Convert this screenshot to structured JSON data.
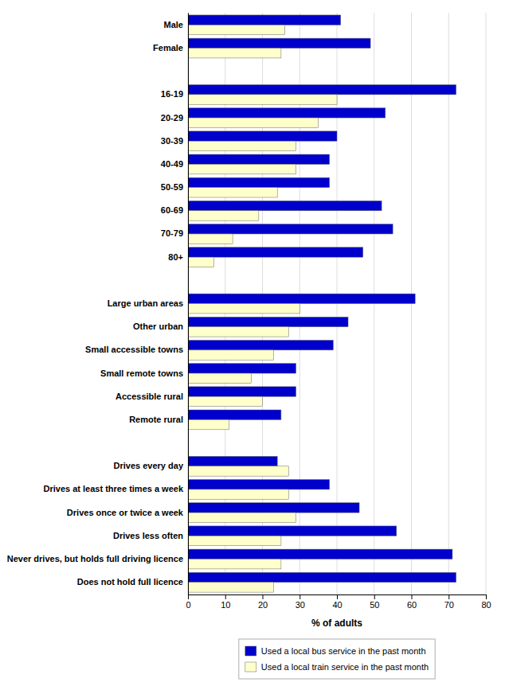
{
  "chart_data": {
    "type": "bar",
    "orientation": "horizontal",
    "x_label": "% of adults",
    "categories": [
      "Male",
      "Female",
      null,
      "16-19",
      "20-29",
      "30-39",
      "40-49",
      "50-59",
      "60-69",
      "70-79",
      "80+",
      null,
      "Large urban areas",
      "Other urban",
      "Small accessible towns",
      "Small remote towns",
      "Accessible rural",
      "Remote rural",
      null,
      "Drives every day",
      "Drives at least three times a week",
      "Drives once or twice a week",
      "Drives less often",
      "Never drives, but holds full driving licence",
      "Does not hold full licence"
    ],
    "series": [
      {
        "name": "Used a local bus service in the past month",
        "color": "#0000CC",
        "values": [
          41,
          49,
          null,
          72,
          53,
          40,
          38,
          38,
          52,
          55,
          47,
          null,
          61,
          43,
          39,
          29,
          29,
          25,
          null,
          24,
          38,
          46,
          56,
          71,
          72
        ]
      },
      {
        "name": "Used a local train service in the past month",
        "color": "#FFFFCC",
        "values": [
          26,
          25,
          null,
          40,
          35,
          29,
          29,
          24,
          19,
          12,
          7,
          null,
          30,
          27,
          23,
          17,
          20,
          11,
          null,
          27,
          27,
          29,
          25,
          25,
          23
        ]
      }
    ],
    "xlim": [
      0,
      80
    ],
    "xticks": [
      0,
      10,
      20,
      30,
      40,
      50,
      60,
      70,
      80
    ],
    "grid": true,
    "legend": "bottom"
  }
}
